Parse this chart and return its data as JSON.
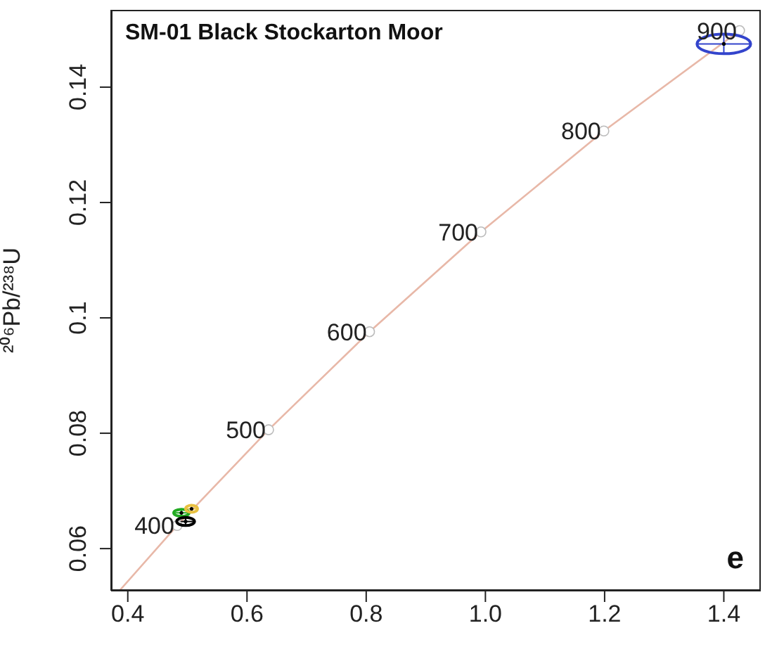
{
  "chart_data": {
    "type": "scatter",
    "title": "SM-01 Black Stockarton Moor",
    "ylabel": "²⁰⁶Pb/²³⁸U",
    "xlim": [
      0.372,
      1.462
    ],
    "ylim": [
      0.0527,
      0.1534
    ],
    "xticks": [
      0.4,
      0.6,
      0.8,
      {
        "value": 1,
        "label": "1.0"
      },
      1.2,
      1.4
    ],
    "yticks": [
      0.06,
      0.08,
      0.1,
      0.12,
      0.14
    ],
    "series": [
      {
        "type": "line",
        "color": "#e8b8a8",
        "x": [
          0.386,
          0.4828,
          0.6362,
          0.8056,
          0.9925,
          1.1987,
          1.4264
        ],
        "values": [
          0.0527,
          0.064,
          0.0806,
          0.0976,
          0.1149,
          0.1324,
          0.1498
        ]
      },
      {
        "marker": "circle",
        "color": "#ffffff",
        "x": [
          0.4828,
          0.6362,
          0.8056,
          0.9925,
          1.1987,
          1.4264
        ],
        "values": [
          0.064,
          0.0806,
          0.0976,
          0.1149,
          0.1324,
          0.1498
        ]
      },
      {
        "color": "#3344cc",
        "x": [
          1.4
        ],
        "values": [
          0.1475
        ],
        "xerrors": [
          0.045
        ],
        "errors": [
          0.0017
        ]
      },
      {
        "color": "#22aa22",
        "x": [
          0.49
        ],
        "values": [
          0.0662
        ],
        "xerrors": [
          0.013
        ],
        "errors": [
          0.0006
        ]
      },
      {
        "color": "#e8c040",
        "x": [
          0.507
        ],
        "values": [
          0.0669
        ],
        "xerrors": [
          0.01
        ],
        "errors": [
          0.0006
        ]
      },
      {
        "color": "#000000",
        "x": [
          0.497
        ],
        "values": [
          0.0647
        ],
        "xerrors": [
          0.015
        ],
        "errors": [
          0.0007
        ]
      }
    ],
    "annotations": [
      {
        "text": "400",
        "x": 0.4828,
        "y": 0.064
      },
      {
        "text": "500",
        "x": 0.6362,
        "y": 0.0806
      },
      {
        "text": "600",
        "x": 0.8056,
        "y": 0.0976
      },
      {
        "text": "700",
        "x": 0.9925,
        "y": 0.1149
      },
      {
        "text": "800",
        "x": 1.1987,
        "y": 0.1324
      },
      {
        "text": "900",
        "x": 1.4264,
        "y": 0.1498
      },
      "e"
    ]
  }
}
